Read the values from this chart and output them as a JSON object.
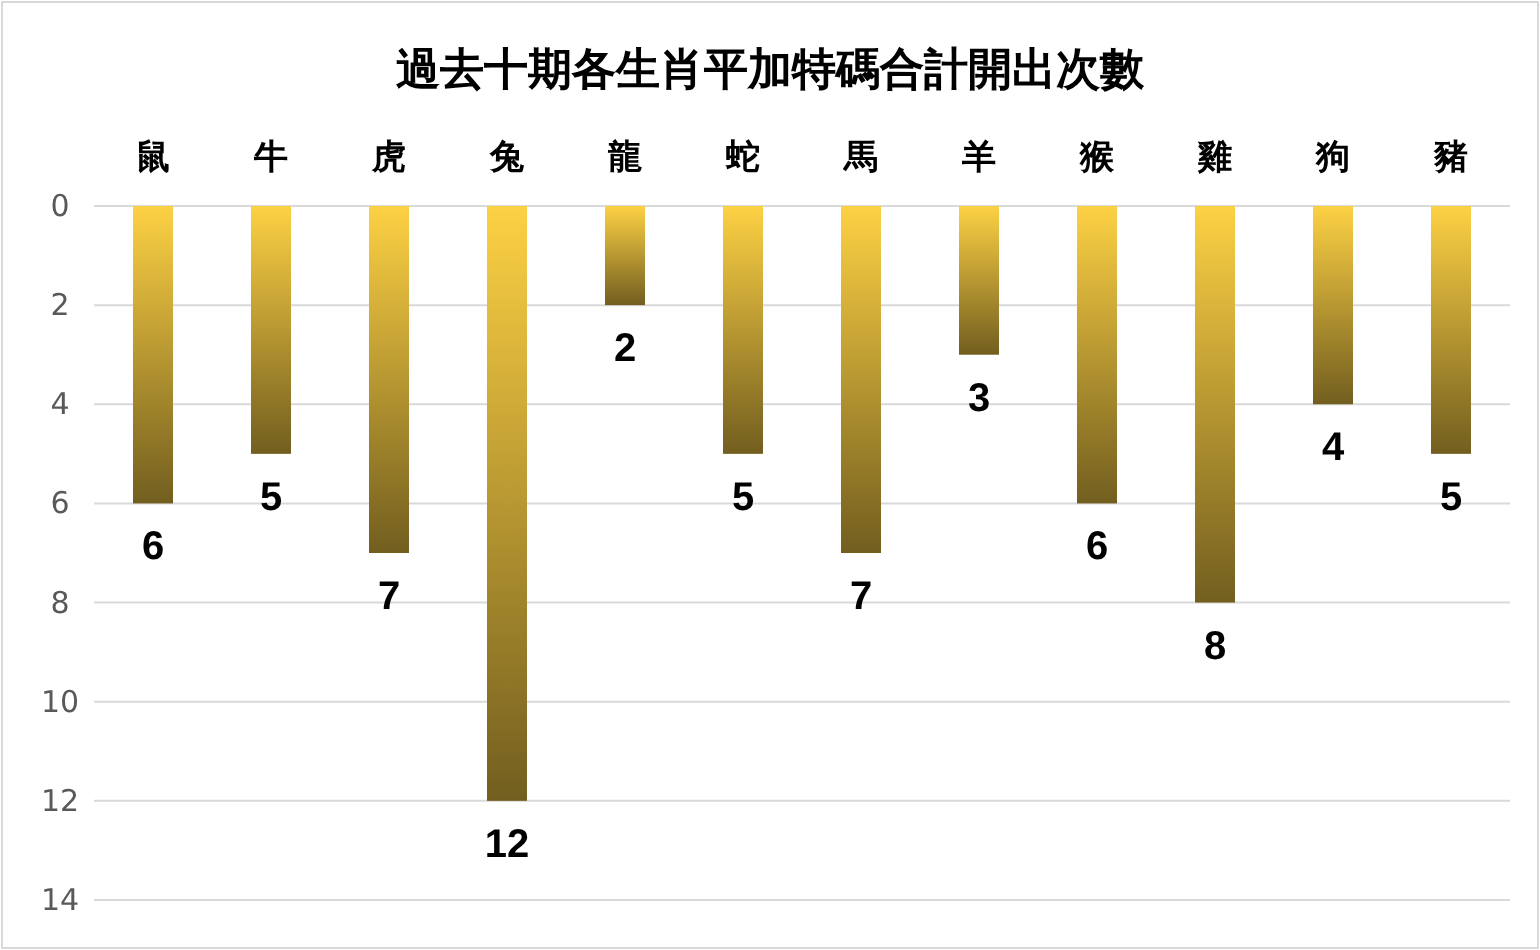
{
  "chart_data": {
    "type": "bar",
    "title": "過去十期各生肖平加特碼合計開出次數",
    "categories": [
      "鼠",
      "牛",
      "虎",
      "兔",
      "龍",
      "蛇",
      "馬",
      "羊",
      "猴",
      "雞",
      "狗",
      "豬"
    ],
    "values": [
      6,
      5,
      7,
      12,
      2,
      5,
      7,
      3,
      6,
      8,
      4,
      5
    ],
    "color": "#fdd144",
    "ylim": [
      14,
      0
    ],
    "yticks": [
      0,
      2,
      4,
      6,
      8,
      10,
      12,
      14
    ],
    "grid": "y",
    "data_labels": true
  }
}
